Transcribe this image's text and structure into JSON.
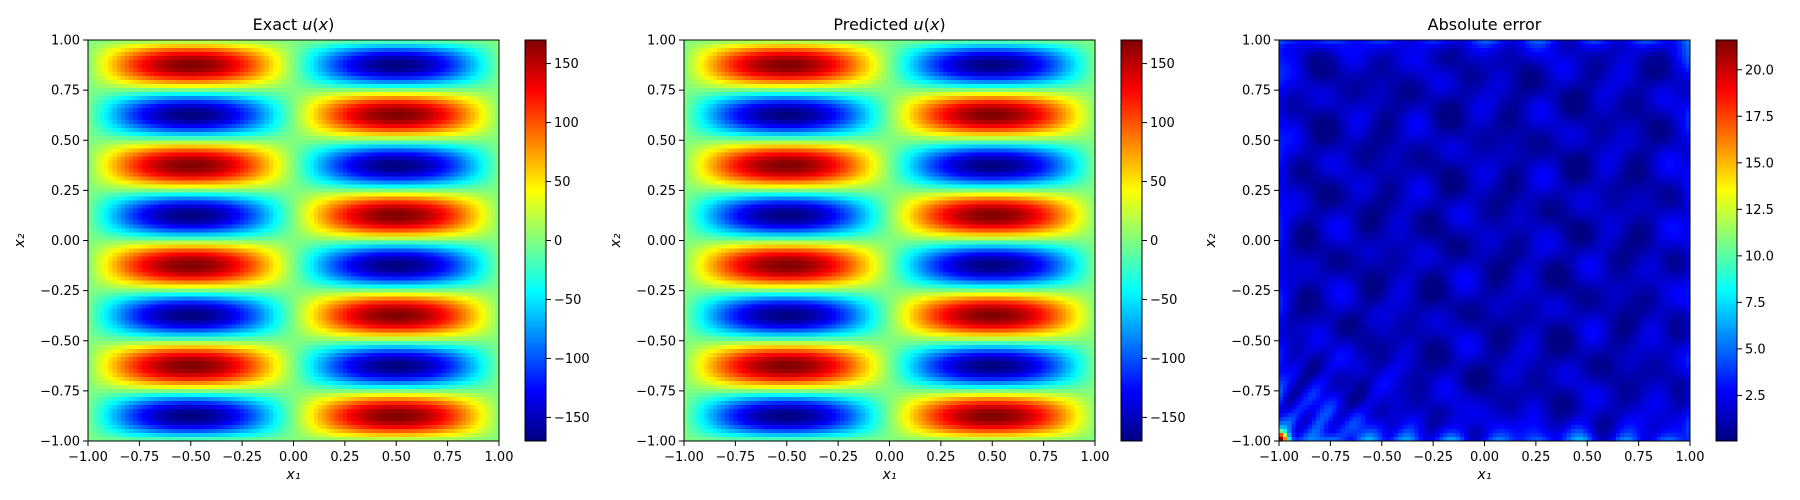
{
  "chart_data": [
    {
      "type": "heatmap",
      "title": "Exact u(x)",
      "title_parts": [
        "Exact ",
        "u",
        "(",
        "x",
        ")"
      ],
      "xlabel": "x₁",
      "ylabel": "x₂",
      "xlim": [
        -1.0,
        1.0
      ],
      "ylim": [
        -1.0,
        1.0
      ],
      "xticks": [
        -1.0,
        -0.75,
        -0.5,
        -0.25,
        0.0,
        0.25,
        0.5,
        0.75,
        1.0
      ],
      "xtick_labels": [
        "−1.00",
        "−0.75",
        "−0.50",
        "−0.25",
        "0.00",
        "0.25",
        "0.50",
        "0.75",
        "1.00"
      ],
      "yticks": [
        -1.0,
        -0.75,
        -0.5,
        -0.25,
        0.0,
        0.25,
        0.5,
        0.75,
        1.0
      ],
      "ytick_labels": [
        "−1.00",
        "−0.75",
        "−0.50",
        "−0.25",
        "0.00",
        "0.25",
        "0.50",
        "0.75",
        "1.00"
      ],
      "colormap": "jet",
      "field": "u(x1,x2) = 170·sin(π·x1)·sin(4π·x2)",
      "amplitude": 170,
      "kx": 1,
      "ky": 4,
      "grid_resolution": [
        100,
        100
      ],
      "color_range": [
        -170,
        170
      ],
      "colorbar": {
        "ticks": [
          150,
          100,
          50,
          0,
          -50,
          -100,
          -150
        ],
        "tick_labels": [
          "150",
          "100",
          "50",
          "0",
          "−50",
          "−100",
          "−150"
        ]
      },
      "grid": false
    },
    {
      "type": "heatmap",
      "title": "Predicted u(x)",
      "title_parts": [
        "Predicted ",
        "u",
        "(",
        "x",
        ")"
      ],
      "xlabel": "x₁",
      "ylabel": "x₂",
      "xlim": [
        -1.0,
        1.0
      ],
      "ylim": [
        -1.0,
        1.0
      ],
      "xticks": [
        -1.0,
        -0.75,
        -0.5,
        -0.25,
        0.0,
        0.25,
        0.5,
        0.75,
        1.0
      ],
      "xtick_labels": [
        "−1.00",
        "−0.75",
        "−0.50",
        "−0.25",
        "0.00",
        "0.25",
        "0.50",
        "0.75",
        "1.00"
      ],
      "yticks": [
        -1.0,
        -0.75,
        -0.5,
        -0.25,
        0.0,
        0.25,
        0.5,
        0.75,
        1.0
      ],
      "ytick_labels": [
        "−1.00",
        "−0.75",
        "−0.50",
        "−0.25",
        "0.00",
        "0.25",
        "0.50",
        "0.75",
        "1.00"
      ],
      "colormap": "jet",
      "field": "u(x1,x2) ≈ 170·sin(π·x1)·sin(4π·x2)",
      "amplitude": 170,
      "kx": 1,
      "ky": 4,
      "grid_resolution": [
        100,
        100
      ],
      "color_range": [
        -170,
        170
      ],
      "colorbar": {
        "ticks": [
          150,
          100,
          50,
          0,
          -50,
          -100,
          -150
        ],
        "tick_labels": [
          "150",
          "100",
          "50",
          "0",
          "−50",
          "−100",
          "−150"
        ]
      },
      "grid": false
    },
    {
      "type": "heatmap",
      "title": "Absolute error",
      "title_parts": [
        "Absolute error"
      ],
      "xlabel": "x₁",
      "ylabel": "x₂",
      "xlim": [
        -1.0,
        1.0
      ],
      "ylim": [
        -1.0,
        1.0
      ],
      "xticks": [
        -1.0,
        -0.75,
        -0.5,
        -0.25,
        0.0,
        0.25,
        0.5,
        0.75,
        1.0
      ],
      "xtick_labels": [
        "−1.00",
        "−0.75",
        "−0.50",
        "−0.25",
        "0.00",
        "0.25",
        "0.50",
        "0.75",
        "1.00"
      ],
      "yticks": [
        -1.0,
        -0.75,
        -0.5,
        -0.25,
        0.0,
        0.25,
        0.5,
        0.75,
        1.0
      ],
      "ytick_labels": [
        "−1.00",
        "−0.75",
        "−0.50",
        "−0.25",
        "0.00",
        "0.25",
        "0.50",
        "0.75",
        "1.00"
      ],
      "colormap": "jet",
      "field": "|u_exact − u_pred|: mostly ≈1–3 with wavy pattern; peak ≈21.5 at corner (−1,−1); elevated along bottom edge and top edge",
      "grid_resolution": [
        100,
        100
      ],
      "color_range": [
        0.05,
        21.6
      ],
      "colorbar": {
        "ticks": [
          20.0,
          17.5,
          15.0,
          12.5,
          10.0,
          7.5,
          5.0,
          2.5
        ],
        "tick_labels": [
          "20.0",
          "17.5",
          "15.0",
          "12.5",
          "10.0",
          "7.5",
          "5.0",
          "2.5"
        ]
      },
      "grid": false
    }
  ]
}
